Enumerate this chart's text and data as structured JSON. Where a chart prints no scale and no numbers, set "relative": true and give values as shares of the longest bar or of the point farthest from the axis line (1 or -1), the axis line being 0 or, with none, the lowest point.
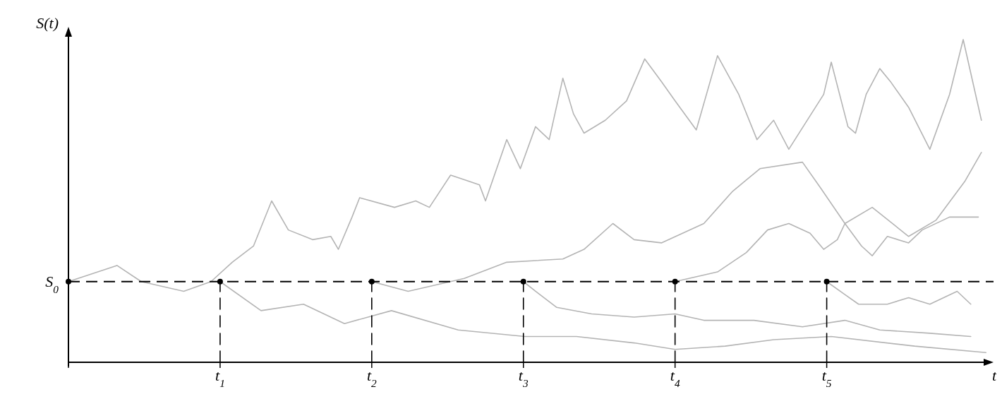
{
  "chart_data": {
    "type": "line",
    "relative": true,
    "xlabel": "t",
    "ylabel": "S(t)",
    "xlim": [
      0,
      6.1
    ],
    "xticks": [
      {
        "value": 0,
        "label": null
      },
      {
        "value": 1,
        "label": "t$_{1}$"
      },
      {
        "value": 2,
        "label": "t$_{2}$"
      },
      {
        "value": 3,
        "label": "t$_{3}$"
      },
      {
        "value": 4,
        "label": "t$_{4}$"
      },
      {
        "value": 5,
        "label": "t$_{5}$"
      }
    ],
    "ref_lines": [
      {
        "axis": "y",
        "value": 0.25,
        "label": "S$_{0}$",
        "color": "#000000",
        "line_style": "dashed"
      }
    ],
    "series": [
      {
        "color": "#b4b4b4",
        "x": [
          0,
          0.32,
          0.48,
          0.76,
          0.94,
          1.08,
          1.22,
          1.34,
          1.45,
          1.61,
          1.73,
          1.78,
          1.87,
          1.92,
          2.15,
          2.29,
          2.38,
          2.52,
          2.71,
          2.75,
          2.89,
          2.98,
          3.08,
          3.17,
          3.26,
          3.33,
          3.4,
          3.54,
          3.68,
          3.8,
          3.91,
          4,
          4.14,
          4.28,
          4.42,
          4.54,
          4.65,
          4.75,
          4.98,
          5.03,
          5.14,
          5.19,
          5.26,
          5.35,
          5.42,
          5.54,
          5.68,
          5.81,
          5.9,
          6.02
        ],
        "values": [
          0.25,
          0.3,
          0.25,
          0.22,
          0.25,
          0.31,
          0.36,
          0.5,
          0.41,
          0.38,
          0.39,
          0.35,
          0.45,
          0.51,
          0.48,
          0.5,
          0.48,
          0.58,
          0.55,
          0.5,
          0.69,
          0.6,
          0.73,
          0.69,
          0.88,
          0.77,
          0.71,
          0.75,
          0.81,
          0.94,
          0.87,
          0.81,
          0.72,
          0.95,
          0.83,
          0.69,
          0.75,
          0.66,
          0.83,
          0.93,
          0.73,
          0.71,
          0.83,
          0.91,
          0.87,
          0.79,
          0.66,
          0.83,
          1,
          0.75
        ]
      },
      {
        "color": "#b4b4b4",
        "x": [
          1,
          1.27,
          1.55,
          1.82,
          2.13,
          2.57,
          3.01,
          3.35,
          3.73,
          4,
          4.33,
          4.65,
          5.03,
          5.58,
          6.05
        ],
        "values": [
          0.25,
          0.16,
          0.18,
          0.12,
          0.16,
          0.1,
          0.08,
          0.08,
          0.06,
          0.04,
          0.05,
          0.07,
          0.08,
          0.05,
          0.03
        ]
      },
      {
        "color": "#b4b4b4",
        "x": [
          2,
          2.24,
          2.61,
          2.89,
          3.26,
          3.4,
          3.59,
          3.73,
          3.91,
          4.19,
          4.38,
          4.56,
          4.84,
          4.96,
          5.12,
          5.3,
          5.54,
          5.72,
          5.91,
          6.02
        ],
        "values": [
          0.25,
          0.22,
          0.26,
          0.31,
          0.32,
          0.35,
          0.43,
          0.38,
          0.37,
          0.43,
          0.53,
          0.6,
          0.62,
          0.54,
          0.43,
          0.48,
          0.39,
          0.44,
          0.56,
          0.65
        ]
      },
      {
        "color": "#b4b4b4",
        "x": [
          3,
          3.08,
          3.22,
          3.45,
          3.73,
          4,
          4.19,
          4.52,
          4.84,
          5.12,
          5.35,
          5.68,
          5.95
        ],
        "values": [
          0.25,
          0.22,
          0.17,
          0.15,
          0.14,
          0.15,
          0.13,
          0.13,
          0.11,
          0.13,
          0.1,
          0.09,
          0.08
        ]
      },
      {
        "color": "#b4b4b4",
        "x": [
          4,
          4.28,
          4.47,
          4.61,
          4.75,
          4.89,
          4.98,
          5.07,
          5.12,
          5.23,
          5.3,
          5.4,
          5.54,
          5.63,
          5.81,
          6
        ],
        "values": [
          0.25,
          0.28,
          0.34,
          0.41,
          0.43,
          0.4,
          0.35,
          0.38,
          0.43,
          0.36,
          0.33,
          0.39,
          0.37,
          0.41,
          0.45,
          0.45
        ]
      },
      {
        "color": "#b4b4b4",
        "x": [
          5,
          5.12,
          5.21,
          5.4,
          5.54,
          5.68,
          5.86,
          5.95
        ],
        "values": [
          0.25,
          0.21,
          0.18,
          0.18,
          0.2,
          0.18,
          0.22,
          0.18
        ]
      },
      {
        "color": "#000000",
        "line_style": "dashed",
        "x": [
          1,
          1
        ],
        "values": [
          0,
          0.25
        ]
      },
      {
        "color": "#000000",
        "line_style": "dashed",
        "x": [
          2,
          2
        ],
        "values": [
          0,
          0.25
        ]
      },
      {
        "color": "#000000",
        "line_style": "dashed",
        "x": [
          3,
          3
        ],
        "values": [
          0,
          0.25
        ]
      },
      {
        "color": "#000000",
        "line_style": "dashed",
        "x": [
          4,
          4
        ],
        "values": [
          0,
          0.25
        ]
      },
      {
        "color": "#000000",
        "line_style": "dashed",
        "x": [
          5,
          5
        ],
        "values": [
          0,
          0.25
        ]
      },
      {
        "type": "scatter",
        "color": "#000000",
        "marker": "circle",
        "x": [
          0,
          1,
          2,
          3,
          4,
          5
        ],
        "values": [
          0.25,
          0.25,
          0.25,
          0.25,
          0.25,
          0.25
        ]
      }
    ]
  }
}
